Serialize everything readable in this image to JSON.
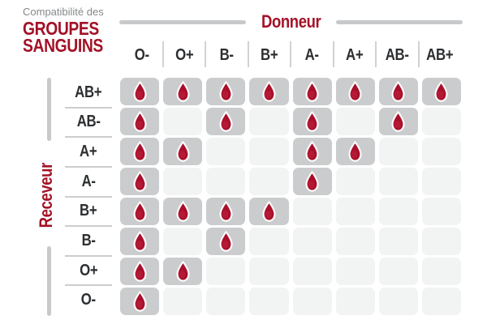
{
  "title": {
    "subtitle": "Compatibilité des",
    "line1": "GROUPES",
    "line2": "SANGUINS"
  },
  "axes": {
    "donor": "Donneur",
    "receiver": "Receveur"
  },
  "icons": {
    "compatible_marker": "blood-drop-icon"
  },
  "colors": {
    "accent_red": "#a31226",
    "drop_red": "#a90f2b",
    "drop_highlight": "#c12742",
    "cell_filled": "#cacccd",
    "cell_empty": "#f2f3f3",
    "divider_gray": "#c7c9cb",
    "label_dark": "#2c2e30",
    "subtitle_gray": "#85878a"
  },
  "chart_data": {
    "type": "heatmap",
    "title": "Compatibilité des GROUPES SANGUINS",
    "xlabel": "Donneur",
    "ylabel": "Receveur",
    "columns": [
      "O-",
      "O+",
      "B-",
      "B+",
      "A-",
      "A+",
      "AB-",
      "AB+"
    ],
    "rows": [
      "AB+",
      "AB-",
      "A+",
      "A-",
      "B+",
      "B-",
      "O+",
      "O-"
    ],
    "marker": "blood-drop = compatible",
    "matrix": [
      [
        1,
        1,
        1,
        1,
        1,
        1,
        1,
        1
      ],
      [
        1,
        0,
        1,
        0,
        1,
        0,
        1,
        0
      ],
      [
        1,
        1,
        0,
        0,
        1,
        1,
        0,
        0
      ],
      [
        1,
        0,
        0,
        0,
        1,
        0,
        0,
        0
      ],
      [
        1,
        1,
        1,
        1,
        0,
        0,
        0,
        0
      ],
      [
        1,
        0,
        1,
        0,
        0,
        0,
        0,
        0
      ],
      [
        1,
        1,
        0,
        0,
        0,
        0,
        0,
        0
      ],
      [
        1,
        0,
        0,
        0,
        0,
        0,
        0,
        0
      ]
    ]
  }
}
